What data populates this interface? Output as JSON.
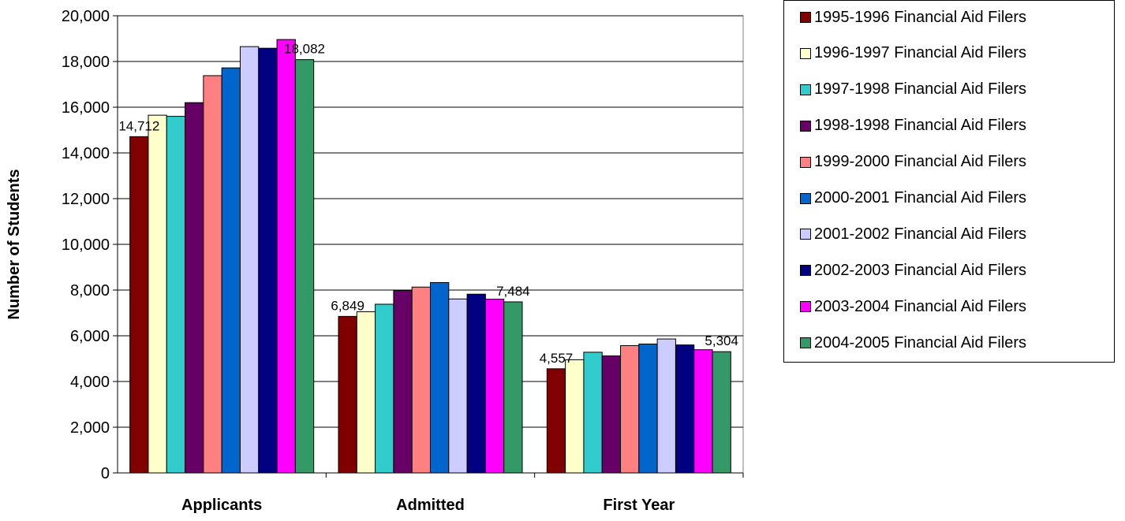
{
  "chart_data": {
    "type": "bar",
    "title": "",
    "xlabel": "",
    "ylabel": "Number of Students",
    "ylim": [
      0,
      20000
    ],
    "yticks": [
      "0",
      "2,000",
      "4,000",
      "6,000",
      "8,000",
      "10,000",
      "12,000",
      "14,000",
      "16,000",
      "18,000",
      "20,000"
    ],
    "grid": true,
    "legend_position": "right",
    "categories": [
      "Applicants",
      "Admitted",
      "First Year"
    ],
    "series": [
      {
        "name": "1995-1996 Financial Aid Filers",
        "color": "#800000",
        "values": [
          14712,
          6849,
          4557
        ]
      },
      {
        "name": "1996-1997 Financial Aid Filers",
        "color": "#FFFFCC",
        "values": [
          15650,
          7050,
          4950
        ]
      },
      {
        "name": "1997-1998 Financial Aid Filers",
        "color": "#33CCCC",
        "values": [
          15600,
          7380,
          5280
        ]
      },
      {
        "name": "1998-1998 Financial Aid Filers",
        "color": "#660066",
        "values": [
          16200,
          7980,
          5120
        ]
      },
      {
        "name": "1999-2000 Financial Aid Filers",
        "color": "#FF8080",
        "values": [
          17380,
          8130,
          5570
        ]
      },
      {
        "name": "2000-2001 Financial Aid Filers",
        "color": "#0066CC",
        "values": [
          17720,
          8330,
          5640
        ]
      },
      {
        "name": "2001-2002 Financial Aid Filers",
        "color": "#CCCCFF",
        "values": [
          18650,
          7610,
          5860
        ]
      },
      {
        "name": "2002-2003 Financial Aid Filers",
        "color": "#000080",
        "values": [
          18580,
          7820,
          5600
        ]
      },
      {
        "name": "2003-2004 Financial Aid Filers",
        "color": "#FF00FF",
        "values": [
          18960,
          7600,
          5390
        ]
      },
      {
        "name": "2004-2005 Financial Aid Filers",
        "color": "#339966",
        "values": [
          18082,
          7484,
          5304
        ]
      }
    ],
    "data_labels": [
      {
        "series": 0,
        "category": 0,
        "text": "14,712"
      },
      {
        "series": 9,
        "category": 0,
        "text": "18,082"
      },
      {
        "series": 0,
        "category": 1,
        "text": "6,849"
      },
      {
        "series": 9,
        "category": 1,
        "text": "7,484"
      },
      {
        "series": 0,
        "category": 2,
        "text": "4,557"
      },
      {
        "series": 9,
        "category": 2,
        "text": "5,304"
      }
    ]
  }
}
